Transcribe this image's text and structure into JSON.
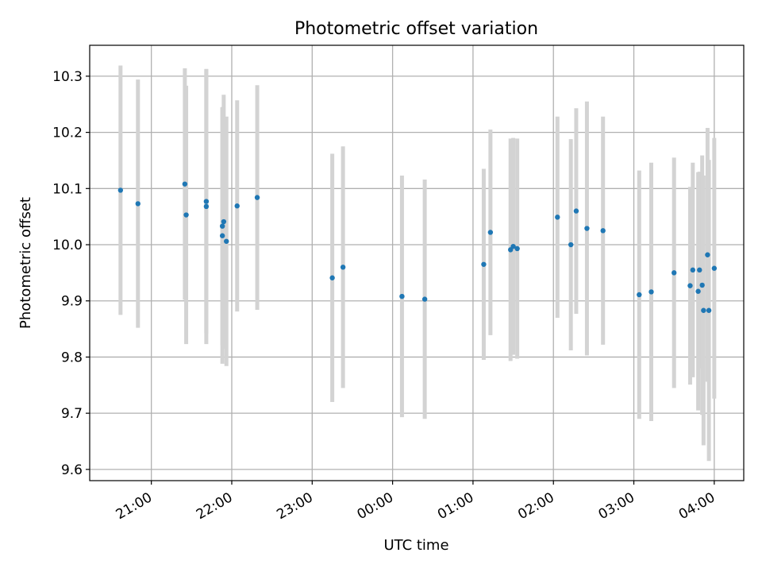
{
  "chart_data": {
    "type": "scatter",
    "title": "Photometric offset variation",
    "xlabel": "UTC time",
    "ylabel": "Photometric offset",
    "x_tick_labels": [
      "21:00",
      "22:00",
      "23:00",
      "00:00",
      "01:00",
      "02:00",
      "03:00",
      "04:00"
    ],
    "y_tick_labels": [
      "9.6",
      "9.7",
      "9.8",
      "9.9",
      "10.0",
      "10.1",
      "10.2",
      "10.3"
    ],
    "y_ticks": [
      9.6,
      9.7,
      9.8,
      9.9,
      10.0,
      10.1,
      10.2,
      10.3
    ],
    "xlim": [
      "20:14",
      "04:22"
    ],
    "ylim": [
      9.58,
      10.355
    ],
    "grid": true,
    "colors": {
      "point": "#1f77b4",
      "errorbar": "#d3d3d3",
      "grid": "#b0b0b0"
    },
    "points": [
      {
        "t": "20:37",
        "y": 10.097,
        "err": 0.222
      },
      {
        "t": "20:50",
        "y": 10.073,
        "err": 0.221
      },
      {
        "t": "21:25",
        "y": 10.108,
        "err": 0.206
      },
      {
        "t": "21:26",
        "y": 10.053,
        "err": 0.23
      },
      {
        "t": "21:41",
        "y": 10.068,
        "err": 0.245
      },
      {
        "t": "21:41",
        "y": 10.077,
        "err": 0.235
      },
      {
        "t": "21:53",
        "y": 10.016,
        "err": 0.228
      },
      {
        "t": "21:53",
        "y": 10.033,
        "err": 0.212
      },
      {
        "t": "21:54",
        "y": 10.041,
        "err": 0.226
      },
      {
        "t": "21:56",
        "y": 10.006,
        "err": 0.222
      },
      {
        "t": "22:04",
        "y": 10.069,
        "err": 0.188
      },
      {
        "t": "22:19",
        "y": 10.084,
        "err": 0.2
      },
      {
        "t": "23:15",
        "y": 9.941,
        "err": 0.221
      },
      {
        "t": "23:23",
        "y": 9.96,
        "err": 0.215
      },
      {
        "t": "00:07",
        "y": 9.908,
        "err": 0.215
      },
      {
        "t": "00:24",
        "y": 9.903,
        "err": 0.213
      },
      {
        "t": "01:08",
        "y": 9.965,
        "err": 0.17
      },
      {
        "t": "01:13",
        "y": 10.022,
        "err": 0.183
      },
      {
        "t": "01:28",
        "y": 9.991,
        "err": 0.198
      },
      {
        "t": "01:30",
        "y": 9.997,
        "err": 0.193
      },
      {
        "t": "01:33",
        "y": 9.993,
        "err": 0.196
      },
      {
        "t": "02:03",
        "y": 10.049,
        "err": 0.179
      },
      {
        "t": "02:13",
        "y": 10.0,
        "err": 0.188
      },
      {
        "t": "02:17",
        "y": 10.06,
        "err": 0.183
      },
      {
        "t": "02:25",
        "y": 10.029,
        "err": 0.226
      },
      {
        "t": "02:37",
        "y": 10.025,
        "err": 0.203
      },
      {
        "t": "03:04",
        "y": 9.911,
        "err": 0.221
      },
      {
        "t": "03:13",
        "y": 9.916,
        "err": 0.23
      },
      {
        "t": "03:30",
        "y": 9.95,
        "err": 0.205
      },
      {
        "t": "03:42",
        "y": 9.927,
        "err": 0.176
      },
      {
        "t": "03:44",
        "y": 9.955,
        "err": 0.191
      },
      {
        "t": "03:48",
        "y": 9.917,
        "err": 0.212
      },
      {
        "t": "03:49",
        "y": 9.955,
        "err": 0.175
      },
      {
        "t": "03:51",
        "y": 9.928,
        "err": 0.231
      },
      {
        "t": "03:52",
        "y": 9.883,
        "err": 0.24
      },
      {
        "t": "03:55",
        "y": 9.982,
        "err": 0.226
      },
      {
        "t": "03:56",
        "y": 9.883,
        "err": 0.268
      },
      {
        "t": "04:00",
        "y": 9.958,
        "err": 0.232
      }
    ]
  }
}
